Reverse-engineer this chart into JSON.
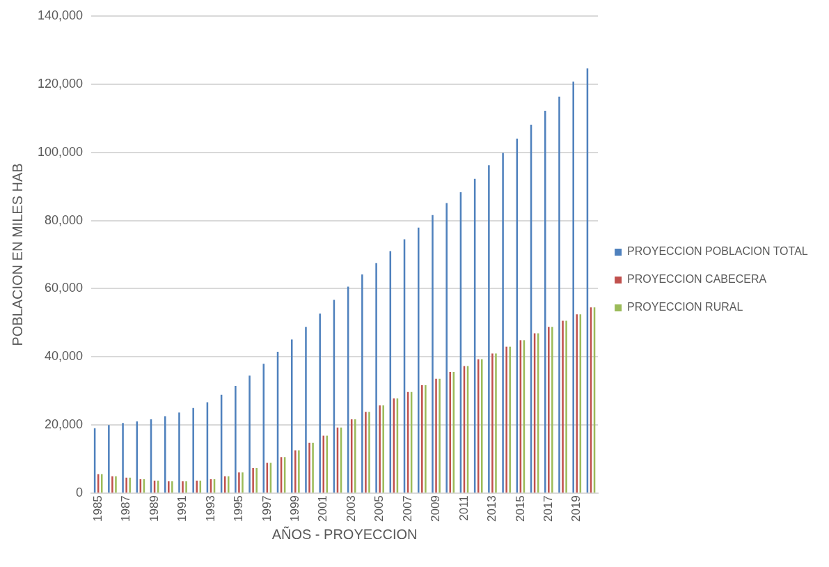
{
  "chart_data": {
    "type": "bar",
    "xlabel": "AÑOS - PROYECCION",
    "ylabel": "POBLACION EN MILES HAB",
    "categories": [
      "1985",
      null,
      "1987",
      null,
      "1989",
      null,
      "1991",
      null,
      "1993",
      null,
      "1995",
      null,
      "1997",
      null,
      "1999",
      null,
      "2001",
      null,
      "2003",
      null,
      "2005",
      null,
      "2007",
      null,
      "2009",
      null,
      "2011",
      null,
      "2013",
      null,
      "2015",
      null,
      "2017",
      null,
      "2019",
      null
    ],
    "series": [
      {
        "name": "PROYECCION POBLACION TOTAL",
        "color": "#4f81bd",
        "values": [
          19100,
          20000,
          20600,
          21100,
          21700,
          22600,
          23700,
          25000,
          26700,
          28900,
          31500,
          34500,
          38000,
          41500,
          45100,
          48800,
          52700,
          56700,
          60600,
          64200,
          67500,
          71000,
          74500,
          77900,
          81600,
          85100,
          88300,
          92200,
          96200,
          99800,
          104000,
          108100,
          112200,
          116300,
          120700,
          124600
        ]
      },
      {
        "name": "PROYECCION CABECERA",
        "color": "#c0504d",
        "values": [
          5600,
          5000,
          4600,
          4100,
          3700,
          3500,
          3500,
          3700,
          4100,
          5000,
          6100,
          7400,
          8900,
          10600,
          12600,
          14800,
          16900,
          19300,
          21700,
          23900,
          25800,
          27800,
          29700,
          31700,
          33600,
          35600,
          37300,
          39300,
          41000,
          43000,
          44900,
          46900,
          48800,
          50600,
          52500,
          54500
        ]
      },
      {
        "name": "PROYECCION RURAL",
        "color": "#9bbb59",
        "values": [
          5600,
          5000,
          4600,
          4100,
          3700,
          3500,
          3500,
          3700,
          4100,
          5000,
          6100,
          7400,
          8900,
          10600,
          12600,
          14800,
          16900,
          19300,
          21700,
          23900,
          25800,
          27800,
          29700,
          31700,
          33600,
          35600,
          37300,
          39300,
          41000,
          43000,
          44900,
          46900,
          48800,
          50600,
          52500,
          54500
        ]
      }
    ],
    "ylim": [
      0,
      140000
    ],
    "yticks": [
      {
        "value": 0,
        "label": "0"
      },
      {
        "value": 20000,
        "label": "20,000"
      },
      {
        "value": 40000,
        "label": "40,000"
      },
      {
        "value": 60000,
        "label": "60,000"
      },
      {
        "value": 80000,
        "label": "80,000"
      },
      {
        "value": 100000,
        "label": "100,000"
      },
      {
        "value": 120000,
        "label": "120,000"
      },
      {
        "value": 140000,
        "label": "140,000"
      }
    ],
    "grid": "y",
    "legend": "right"
  }
}
